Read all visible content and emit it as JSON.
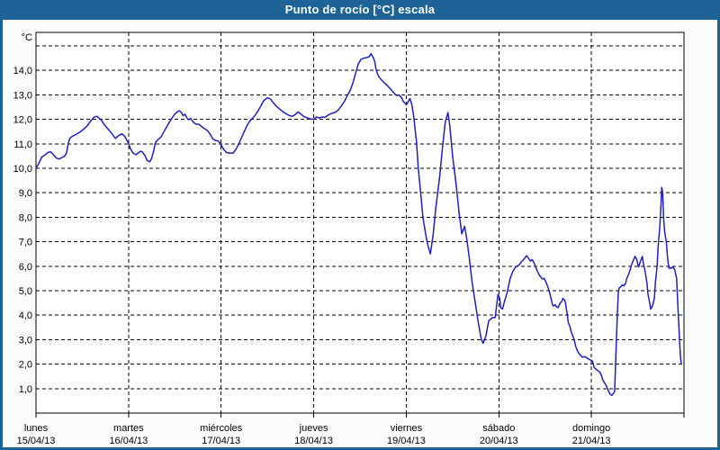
{
  "window": {
    "title": "Punto de rocío [°C] escala"
  },
  "colors": {
    "titlebar": "#1d6396",
    "frame": "#1d6396",
    "page_background": "#fbfdfa",
    "plot_background": "#ffffff",
    "gridline": "#000000",
    "line": "#2020bb"
  },
  "chart_data": {
    "type": "line",
    "title": "Punto de rocío [°C] escala",
    "unit_label": "°C",
    "grid": "dashed",
    "legend_position": "none",
    "ylim": [
      0,
      15.55
    ],
    "y_ticks": [
      {
        "value": 1,
        "label": "1,0"
      },
      {
        "value": 2,
        "label": "2,0"
      },
      {
        "value": 3,
        "label": "3,0"
      },
      {
        "value": 4,
        "label": "4,0"
      },
      {
        "value": 5,
        "label": "5,0"
      },
      {
        "value": 6,
        "label": "6,0"
      },
      {
        "value": 7,
        "label": "7,0"
      },
      {
        "value": 8,
        "label": "8,0"
      },
      {
        "value": 9,
        "label": "9,0"
      },
      {
        "value": 10,
        "label": "10,0"
      },
      {
        "value": 11,
        "label": "11,0"
      },
      {
        "value": 12,
        "label": "12,0"
      },
      {
        "value": 13,
        "label": "13,0"
      },
      {
        "value": 14,
        "label": "14,0"
      }
    ],
    "unlabeled_gridline_values": [
      15
    ],
    "x_ticks": [
      {
        "day": 0,
        "weekday": "lunes",
        "date": "15/04/13"
      },
      {
        "day": 1,
        "weekday": "martes",
        "date": "16/04/13"
      },
      {
        "day": 2,
        "weekday": "miércoles",
        "date": "17/04/13"
      },
      {
        "day": 3,
        "weekday": "jueves",
        "date": "18/04/13"
      },
      {
        "day": 4,
        "weekday": "viernes",
        "date": "19/04/13"
      },
      {
        "day": 5,
        "weekday": "sábado",
        "date": "20/04/13"
      },
      {
        "day": 6,
        "weekday": "domingo",
        "date": "21/04/13"
      }
    ],
    "x_gridline_days": [
      1,
      2,
      3,
      4,
      5,
      6
    ],
    "x_axis_tick_days": [
      0,
      1,
      2,
      3,
      4,
      5,
      6,
      7
    ],
    "series": [
      {
        "name": "Punto de rocío",
        "color": "#2020bb",
        "x_unit": "days_since_2013-04-15",
        "points": [
          [
            0,
            10.0
          ],
          [
            0.03,
            10.2
          ],
          [
            0.06,
            10.45
          ],
          [
            0.1,
            10.55
          ],
          [
            0.13,
            10.65
          ],
          [
            0.16,
            10.67
          ],
          [
            0.19,
            10.55
          ],
          [
            0.22,
            10.42
          ],
          [
            0.25,
            10.38
          ],
          [
            0.28,
            10.44
          ],
          [
            0.31,
            10.5
          ],
          [
            0.33,
            10.62
          ],
          [
            0.35,
            11.05
          ],
          [
            0.37,
            11.25
          ],
          [
            0.4,
            11.32
          ],
          [
            0.43,
            11.38
          ],
          [
            0.46,
            11.45
          ],
          [
            0.49,
            11.52
          ],
          [
            0.52,
            11.62
          ],
          [
            0.55,
            11.72
          ],
          [
            0.58,
            11.88
          ],
          [
            0.61,
            12.02
          ],
          [
            0.63,
            12.1
          ],
          [
            0.66,
            12.12
          ],
          [
            0.68,
            12.05
          ],
          [
            0.71,
            11.95
          ],
          [
            0.73,
            11.82
          ],
          [
            0.76,
            11.68
          ],
          [
            0.79,
            11.55
          ],
          [
            0.82,
            11.42
          ],
          [
            0.84,
            11.3
          ],
          [
            0.86,
            11.22
          ],
          [
            0.88,
            11.3
          ],
          [
            0.91,
            11.38
          ],
          [
            0.93,
            11.4
          ],
          [
            0.96,
            11.3
          ],
          [
            0.98,
            11.15
          ],
          [
            1,
            11.02
          ],
          [
            1.02,
            10.8
          ],
          [
            1.05,
            10.62
          ],
          [
            1.08,
            10.55
          ],
          [
            1.1,
            10.62
          ],
          [
            1.13,
            10.7
          ],
          [
            1.15,
            10.66
          ],
          [
            1.18,
            10.5
          ],
          [
            1.2,
            10.32
          ],
          [
            1.23,
            10.27
          ],
          [
            1.25,
            10.42
          ],
          [
            1.27,
            10.7
          ],
          [
            1.29,
            11.05
          ],
          [
            1.32,
            11.18
          ],
          [
            1.35,
            11.28
          ],
          [
            1.38,
            11.48
          ],
          [
            1.41,
            11.68
          ],
          [
            1.44,
            11.88
          ],
          [
            1.47,
            12.05
          ],
          [
            1.5,
            12.22
          ],
          [
            1.53,
            12.32
          ],
          [
            1.55,
            12.35
          ],
          [
            1.57,
            12.28
          ],
          [
            1.59,
            12.15
          ],
          [
            1.61,
            12.21
          ],
          [
            1.63,
            12.05
          ],
          [
            1.65,
            11.98
          ],
          [
            1.67,
            12.04
          ],
          [
            1.7,
            11.88
          ],
          [
            1.73,
            11.8
          ],
          [
            1.76,
            11.8
          ],
          [
            1.79,
            11.7
          ],
          [
            1.82,
            11.62
          ],
          [
            1.85,
            11.55
          ],
          [
            1.88,
            11.4
          ],
          [
            1.91,
            11.2
          ],
          [
            1.94,
            11.13
          ],
          [
            1.97,
            11.12
          ],
          [
            2,
            10.95
          ],
          [
            2.03,
            10.76
          ],
          [
            2.06,
            10.64
          ],
          [
            2.09,
            10.62
          ],
          [
            2.13,
            10.62
          ],
          [
            2.16,
            10.78
          ],
          [
            2.19,
            11.0
          ],
          [
            2.22,
            11.25
          ],
          [
            2.25,
            11.5
          ],
          [
            2.28,
            11.75
          ],
          [
            2.31,
            11.93
          ],
          [
            2.34,
            12.05
          ],
          [
            2.37,
            12.18
          ],
          [
            2.4,
            12.36
          ],
          [
            2.43,
            12.55
          ],
          [
            2.46,
            12.76
          ],
          [
            2.5,
            12.88
          ],
          [
            2.53,
            12.84
          ],
          [
            2.56,
            12.7
          ],
          [
            2.59,
            12.56
          ],
          [
            2.62,
            12.46
          ],
          [
            2.65,
            12.36
          ],
          [
            2.68,
            12.28
          ],
          [
            2.71,
            12.21
          ],
          [
            2.74,
            12.15
          ],
          [
            2.77,
            12.12
          ],
          [
            2.8,
            12.2
          ],
          [
            2.83,
            12.3
          ],
          [
            2.86,
            12.22
          ],
          [
            2.89,
            12.12
          ],
          [
            2.93,
            12.06
          ],
          [
            2.96,
            12.02
          ],
          [
            3,
            12.0
          ],
          [
            3.03,
            12.1
          ],
          [
            3.06,
            12.05
          ],
          [
            3.09,
            12.1
          ],
          [
            3.12,
            12.08
          ],
          [
            3.15,
            12.16
          ],
          [
            3.18,
            12.22
          ],
          [
            3.21,
            12.26
          ],
          [
            3.24,
            12.3
          ],
          [
            3.27,
            12.4
          ],
          [
            3.3,
            12.55
          ],
          [
            3.33,
            12.72
          ],
          [
            3.36,
            12.95
          ],
          [
            3.39,
            13.15
          ],
          [
            3.42,
            13.45
          ],
          [
            3.45,
            13.85
          ],
          [
            3.48,
            14.25
          ],
          [
            3.51,
            14.45
          ],
          [
            3.54,
            14.5
          ],
          [
            3.57,
            14.52
          ],
          [
            3.6,
            14.56
          ],
          [
            3.62,
            14.68
          ],
          [
            3.64,
            14.55
          ],
          [
            3.66,
            14.35
          ],
          [
            3.67,
            14.1
          ],
          [
            3.69,
            13.85
          ],
          [
            3.71,
            13.7
          ],
          [
            3.73,
            13.62
          ],
          [
            3.76,
            13.5
          ],
          [
            3.79,
            13.4
          ],
          [
            3.82,
            13.28
          ],
          [
            3.85,
            13.15
          ],
          [
            3.88,
            13.02
          ],
          [
            3.9,
            12.97
          ],
          [
            3.92,
            13.0
          ],
          [
            3.95,
            12.88
          ],
          [
            3.97,
            12.72
          ],
          [
            4,
            12.6
          ],
          [
            4.02,
            12.72
          ],
          [
            4.04,
            12.85
          ],
          [
            4.06,
            12.6
          ],
          [
            4.08,
            12.11
          ],
          [
            4.11,
            11.1
          ],
          [
            4.13,
            10.0
          ],
          [
            4.16,
            8.8
          ],
          [
            4.18,
            8.0
          ],
          [
            4.21,
            7.3
          ],
          [
            4.23,
            6.9
          ],
          [
            4.26,
            6.5
          ],
          [
            4.29,
            7.3
          ],
          [
            4.32,
            8.4
          ],
          [
            4.36,
            9.65
          ],
          [
            4.39,
            10.8
          ],
          [
            4.42,
            11.85
          ],
          [
            4.45,
            12.28
          ],
          [
            4.47,
            11.74
          ],
          [
            4.5,
            10.5
          ],
          [
            4.54,
            9.28
          ],
          [
            4.57,
            8.18
          ],
          [
            4.6,
            7.32
          ],
          [
            4.63,
            7.63
          ],
          [
            4.65,
            7.2
          ],
          [
            4.68,
            6.35
          ],
          [
            4.71,
            5.36
          ],
          [
            4.75,
            4.38
          ],
          [
            4.78,
            3.64
          ],
          [
            4.81,
            3.03
          ],
          [
            4.83,
            2.85
          ],
          [
            4.86,
            3.15
          ],
          [
            4.89,
            3.77
          ],
          [
            4.93,
            3.9
          ],
          [
            4.96,
            3.9
          ],
          [
            4.99,
            4.85
          ],
          [
            5.01,
            4.68
          ],
          [
            5.02,
            4.31
          ],
          [
            5.04,
            4.25
          ],
          [
            5.06,
            4.56
          ],
          [
            5.09,
            4.92
          ],
          [
            5.12,
            5.47
          ],
          [
            5.15,
            5.78
          ],
          [
            5.18,
            5.96
          ],
          [
            5.22,
            6.06
          ],
          [
            5.25,
            6.21
          ],
          [
            5.28,
            6.33
          ],
          [
            5.3,
            6.43
          ],
          [
            5.32,
            6.33
          ],
          [
            5.34,
            6.21
          ],
          [
            5.36,
            6.27
          ],
          [
            5.38,
            6.14
          ],
          [
            5.41,
            5.84
          ],
          [
            5.44,
            5.62
          ],
          [
            5.47,
            5.48
          ],
          [
            5.49,
            5.5
          ],
          [
            5.51,
            5.35
          ],
          [
            5.54,
            5.04
          ],
          [
            5.56,
            4.74
          ],
          [
            5.58,
            4.43
          ],
          [
            5.59,
            4.37
          ],
          [
            5.61,
            4.43
          ],
          [
            5.62,
            4.35
          ],
          [
            5.64,
            4.31
          ],
          [
            5.66,
            4.49
          ],
          [
            5.68,
            4.56
          ],
          [
            5.69,
            4.68
          ],
          [
            5.71,
            4.62
          ],
          [
            5.72,
            4.5
          ],
          [
            5.74,
            4.0
          ],
          [
            5.75,
            3.7
          ],
          [
            5.77,
            3.51
          ],
          [
            5.78,
            3.33
          ],
          [
            5.8,
            3.15
          ],
          [
            5.82,
            2.9
          ],
          [
            5.83,
            2.72
          ],
          [
            5.85,
            2.53
          ],
          [
            5.87,
            2.41
          ],
          [
            5.9,
            2.29
          ],
          [
            5.93,
            2.31
          ],
          [
            5.96,
            2.23
          ],
          [
            5.99,
            2.17
          ],
          [
            6.01,
            2.13
          ],
          [
            6.03,
            1.86
          ],
          [
            6.06,
            1.76
          ],
          [
            6.09,
            1.68
          ],
          [
            6.11,
            1.52
          ],
          [
            6.12,
            1.37
          ],
          [
            6.14,
            1.25
          ],
          [
            6.16,
            1.13
          ],
          [
            6.18,
            0.94
          ],
          [
            6.2,
            0.78
          ],
          [
            6.22,
            0.72
          ],
          [
            6.25,
            0.88
          ],
          [
            6.26,
            1.9
          ],
          [
            6.27,
            3.0
          ],
          [
            6.28,
            4.0
          ],
          [
            6.29,
            4.93
          ],
          [
            6.3,
            5.11
          ],
          [
            6.32,
            5.17
          ],
          [
            6.33,
            5.23
          ],
          [
            6.35,
            5.2
          ],
          [
            6.37,
            5.3
          ],
          [
            6.38,
            5.48
          ],
          [
            6.4,
            5.66
          ],
          [
            6.42,
            5.85
          ],
          [
            6.43,
            6.03
          ],
          [
            6.45,
            6.21
          ],
          [
            6.47,
            6.4
          ],
          [
            6.49,
            6.28
          ],
          [
            6.5,
            6.1
          ],
          [
            6.51,
            5.97
          ],
          [
            6.53,
            6.21
          ],
          [
            6.55,
            6.4
          ],
          [
            6.56,
            6.15
          ],
          [
            6.58,
            5.79
          ],
          [
            6.6,
            5.3
          ],
          [
            6.61,
            4.87
          ],
          [
            6.63,
            4.5
          ],
          [
            6.64,
            4.25
          ],
          [
            6.66,
            4.38
          ],
          [
            6.68,
            4.68
          ],
          [
            6.69,
            5.3
          ],
          [
            6.71,
            6.03
          ],
          [
            6.72,
            6.77
          ],
          [
            6.74,
            7.7
          ],
          [
            6.75,
            8.43
          ],
          [
            6.76,
            9.22
          ],
          [
            6.77,
            9.0
          ],
          [
            6.78,
            7.94
          ],
          [
            6.79,
            7.45
          ],
          [
            6.81,
            6.95
          ],
          [
            6.82,
            6.46
          ],
          [
            6.83,
            6.1
          ],
          [
            6.84,
            5.91
          ],
          [
            6.85,
            5.95
          ],
          [
            6.86,
            5.91
          ],
          [
            6.88,
            5.97
          ],
          [
            6.89,
            5.91
          ],
          [
            6.9,
            5.85
          ],
          [
            6.92,
            5.5
          ],
          [
            6.93,
            4.7
          ],
          [
            6.94,
            3.9
          ],
          [
            6.95,
            3.1
          ],
          [
            6.96,
            2.4
          ],
          [
            6.97,
            2.0
          ]
        ]
      }
    ]
  }
}
